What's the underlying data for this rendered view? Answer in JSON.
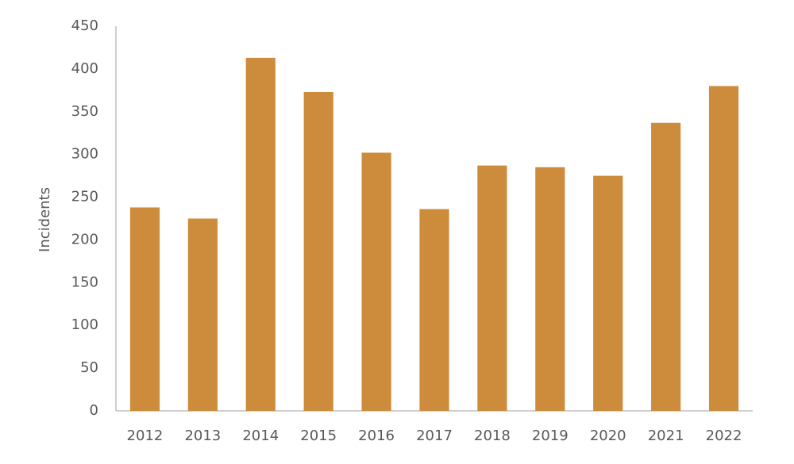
{
  "chart_data": {
    "type": "bar",
    "y_label": "Incidents",
    "categories": [
      "2012",
      "2013",
      "2014",
      "2015",
      "2016",
      "2017",
      "2018",
      "2019",
      "2020",
      "2021",
      "2022"
    ],
    "values": [
      238,
      225,
      413,
      373,
      302,
      236,
      287,
      285,
      275,
      337,
      380
    ],
    "color": "#cd8c3c",
    "ylim": [
      0,
      450
    ],
    "yticks": [
      0,
      50,
      100,
      150,
      200,
      250,
      300,
      350,
      400,
      450
    ],
    "grid": false
  }
}
